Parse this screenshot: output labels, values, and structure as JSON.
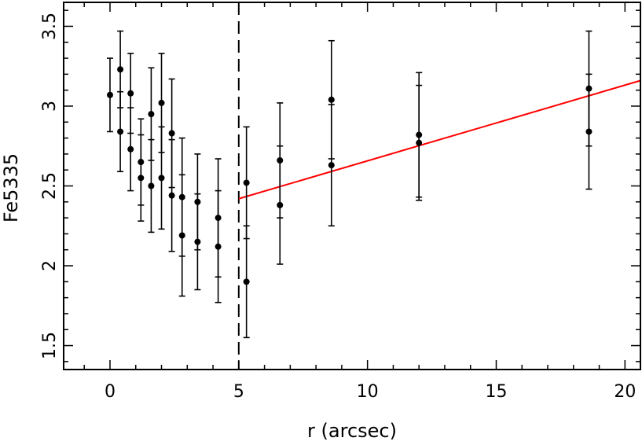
{
  "chart_data": {
    "type": "scatter",
    "xlabel": "r (arcsec)",
    "ylabel": "Fe5335",
    "xlim": [
      -1.8,
      20.6
    ],
    "ylim": [
      1.35,
      3.65
    ],
    "x_ticks": [
      0,
      5,
      10,
      15,
      20
    ],
    "y_ticks": [
      1.5,
      2,
      2.5,
      3,
      3.5
    ],
    "x_tick_labels": [
      "0",
      "5",
      "10",
      "15",
      "20"
    ],
    "y_tick_labels": [
      "1.5",
      "2",
      "2.5",
      "3",
      "3.5"
    ],
    "x_minor_step": 1,
    "y_minor_step": 0.1,
    "grid": false,
    "vertical_line": {
      "x": 5.0,
      "style": "dashed",
      "color": "#000000"
    },
    "fit_line": {
      "x": [
        5.0,
        20.6
      ],
      "y": [
        2.42,
        3.16
      ],
      "color": "#ff0000"
    },
    "series": [
      {
        "marker": "circle",
        "color": "#000000",
        "points": [
          {
            "x": 0.0,
            "y": 3.07,
            "err": 0.23
          },
          {
            "x": 0.4,
            "y": 3.23,
            "err": 0.24
          },
          {
            "x": 0.4,
            "y": 2.84,
            "err": 0.25
          },
          {
            "x": 0.8,
            "y": 3.08,
            "err": 0.25
          },
          {
            "x": 0.8,
            "y": 2.73,
            "err": 0.26
          },
          {
            "x": 1.2,
            "y": 2.65,
            "err": 0.27
          },
          {
            "x": 1.2,
            "y": 2.55,
            "err": 0.27
          },
          {
            "x": 1.6,
            "y": 2.95,
            "err": 0.29
          },
          {
            "x": 1.6,
            "y": 2.5,
            "err": 0.29
          },
          {
            "x": 2.0,
            "y": 3.02,
            "err": 0.31
          },
          {
            "x": 2.0,
            "y": 2.55,
            "err": 0.32
          },
          {
            "x": 2.4,
            "y": 2.83,
            "err": 0.34
          },
          {
            "x": 2.4,
            "y": 2.44,
            "err": 0.35
          },
          {
            "x": 2.8,
            "y": 2.43,
            "err": 0.37
          },
          {
            "x": 2.8,
            "y": 2.19,
            "err": 0.38
          },
          {
            "x": 3.4,
            "y": 2.4,
            "err": 0.3
          },
          {
            "x": 3.4,
            "y": 2.15,
            "err": 0.3
          },
          {
            "x": 4.2,
            "y": 2.3,
            "err": 0.37
          },
          {
            "x": 4.2,
            "y": 2.12,
            "err": 0.35
          },
          {
            "x": 5.3,
            "y": 2.52,
            "err": 0.35
          },
          {
            "x": 5.3,
            "y": 1.9,
            "err": 0.35
          },
          {
            "x": 6.6,
            "y": 2.66,
            "err": 0.36
          },
          {
            "x": 6.6,
            "y": 2.38,
            "err": 0.37
          },
          {
            "x": 8.6,
            "y": 3.04,
            "err": 0.37
          },
          {
            "x": 8.6,
            "y": 2.63,
            "err": 0.38
          },
          {
            "x": 12.0,
            "y": 2.82,
            "err": 0.39
          },
          {
            "x": 12.0,
            "y": 2.77,
            "err": 0.36
          },
          {
            "x": 18.6,
            "y": 3.11,
            "err": 0.36
          },
          {
            "x": 18.6,
            "y": 2.84,
            "err": 0.36
          }
        ]
      }
    ]
  }
}
